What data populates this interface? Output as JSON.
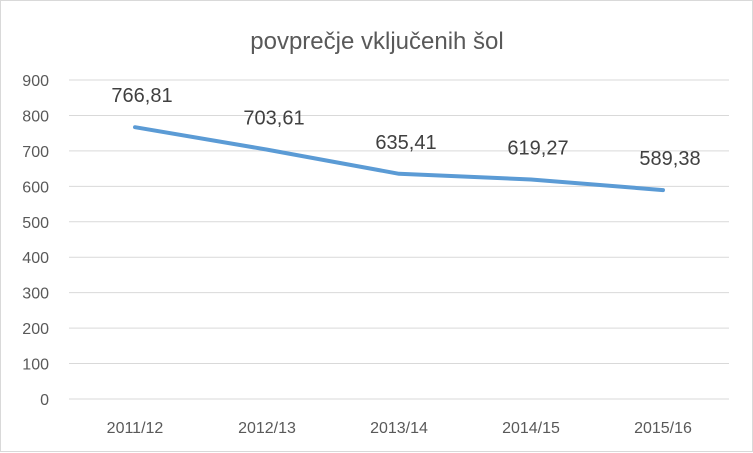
{
  "chart_data": {
    "type": "line",
    "title": "povprečje vključenih šol",
    "categories": [
      "2011/12",
      "2012/13",
      "2013/14",
      "2014/15",
      "2015/16"
    ],
    "values": [
      766.81,
      703.61,
      635.41,
      619.27,
      589.38
    ],
    "data_labels": [
      "766,81",
      "703,61",
      "635,41",
      "619,27",
      "589,38"
    ],
    "y_ticks": [
      "0",
      "100",
      "200",
      "300",
      "400",
      "500",
      "600",
      "700",
      "800",
      "900"
    ],
    "ylim": [
      0,
      900
    ],
    "grid": true,
    "legend": "none",
    "line_color": "#5b9bd5",
    "grid_color": "#d9d9d9"
  }
}
